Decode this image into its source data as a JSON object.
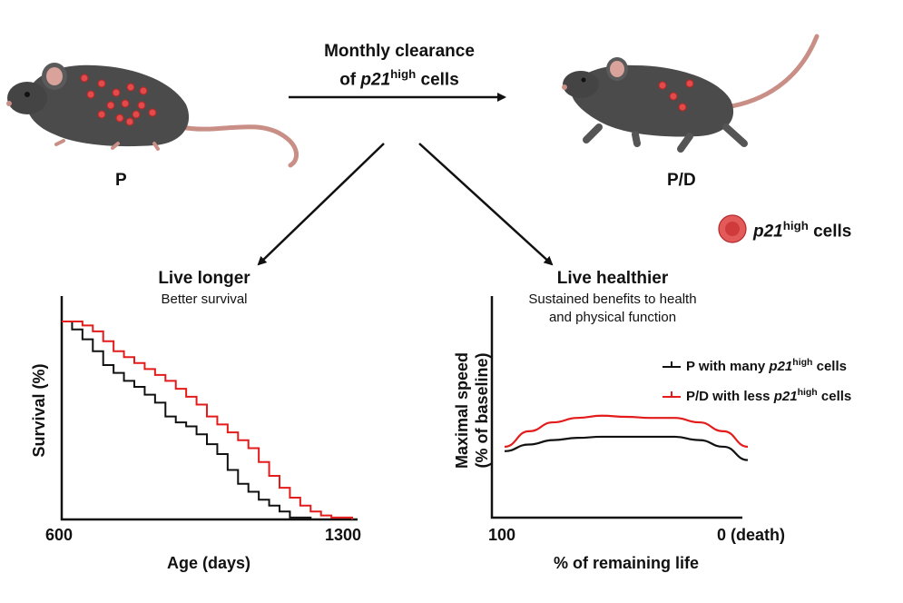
{
  "header": {
    "line1": "Monthly clearance",
    "line2_pre": "of ",
    "line2_gene": "p21",
    "line2_sup": "high",
    "line2_post": " cells"
  },
  "mice": {
    "left_label": "P",
    "right_label": "P/D"
  },
  "cell_legend": {
    "gene": "p21",
    "sup": "high",
    "text": " cells"
  },
  "survival_panel": {
    "title": "Live longer",
    "subtitle": "Better survival",
    "ylabel": "Survival (%)",
    "xlabel": "Age (days)",
    "x_tick_left": "600",
    "x_tick_right": "1300"
  },
  "speed_panel": {
    "title": "Live healthier",
    "subtitle_line1": "Sustained benefits to health",
    "subtitle_line2": "and physical function",
    "ylabel_line1": "Maximal speed",
    "ylabel_line2": "(% of baseline)",
    "xlabel": "% of remaining life",
    "x_tick_left": "100",
    "x_tick_right": "0 (death)",
    "legend": [
      {
        "pre": "P with many ",
        "gene": "p21",
        "sup": "high",
        "post": " cells",
        "color": "#111111"
      },
      {
        "pre": "P/D with less ",
        "gene": "p21",
        "sup": "high",
        "post": " cells",
        "color": "#e31b1b"
      }
    ]
  },
  "chart_data": [
    {
      "type": "line",
      "title": "",
      "xlabel": "Age (days)",
      "ylabel": "Survival (%)",
      "xlim": [
        600,
        1300
      ],
      "ylim": [
        0,
        100
      ],
      "grid": false,
      "series": [
        {
          "color": "#111111",
          "x": [
            600,
            625,
            650,
            675,
            700,
            725,
            750,
            775,
            800,
            825,
            850,
            875,
            900,
            925,
            950,
            975,
            1000,
            1025,
            1050,
            1075,
            1100,
            1125,
            1150,
            1200,
            1250
          ],
          "y": [
            100,
            96,
            91,
            85,
            78,
            74,
            70,
            67,
            63,
            59,
            52,
            49,
            47,
            43,
            38,
            33,
            25,
            18,
            14,
            10,
            7,
            4,
            1,
            0,
            0
          ]
        },
        {
          "color": "#e31b1b",
          "x": [
            600,
            625,
            650,
            675,
            700,
            725,
            750,
            775,
            800,
            825,
            850,
            875,
            900,
            925,
            950,
            975,
            1000,
            1025,
            1050,
            1075,
            1100,
            1125,
            1150,
            1175,
            1200,
            1225,
            1250,
            1275,
            1300
          ],
          "y": [
            100,
            100,
            98,
            95,
            90,
            85,
            82,
            79,
            76,
            73,
            70,
            66,
            62,
            58,
            52,
            48,
            44,
            40,
            36,
            29,
            22,
            16,
            11,
            7,
            4,
            2,
            1,
            1,
            0
          ]
        }
      ]
    },
    {
      "type": "line",
      "title": "",
      "xlabel": "% of remaining life",
      "ylabel": "Maximal speed (% of baseline)",
      "xlim": [
        100,
        0
      ],
      "ylim": [
        0,
        100
      ],
      "grid": false,
      "series": [
        {
          "color": "#111111",
          "x": [
            100,
            90,
            80,
            70,
            60,
            50,
            40,
            30,
            20,
            10,
            0
          ],
          "y": [
            30,
            33,
            35,
            36,
            36.5,
            36.5,
            36.5,
            36.5,
            35,
            32,
            26
          ]
        },
        {
          "color": "#e31b1b",
          "x": [
            100,
            90,
            80,
            70,
            60,
            50,
            40,
            30,
            20,
            10,
            0
          ],
          "y": [
            32,
            39,
            43,
            45,
            46,
            45.5,
            45,
            45,
            43,
            39,
            32
          ]
        }
      ]
    }
  ]
}
